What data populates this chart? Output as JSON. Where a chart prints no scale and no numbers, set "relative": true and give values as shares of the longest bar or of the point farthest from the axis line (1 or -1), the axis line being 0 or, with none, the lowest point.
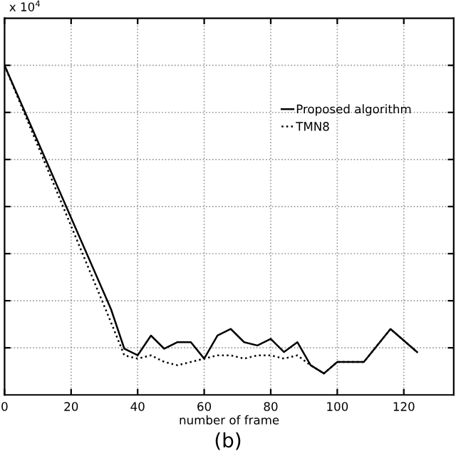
{
  "chart_data": {
    "type": "line",
    "relative": true,
    "xlabel": "number of frame",
    "annotations": [
      "x 10$^{4}$",
      "(b)"
    ],
    "x": [
      0,
      32,
      36,
      40,
      44,
      48,
      52,
      56,
      60,
      64,
      68,
      72,
      76,
      80,
      84,
      88,
      92,
      96,
      100,
      104,
      108,
      116,
      124
    ],
    "series": [
      {
        "name": "Proposed algorithm",
        "color": "#000000",
        "line_style": "solid",
        "values": [
          1.0,
          0.26,
          0.14,
          0.12,
          0.18,
          0.14,
          0.16,
          0.16,
          0.11,
          0.18,
          0.2,
          0.16,
          0.15,
          0.17,
          0.13,
          0.16,
          0.09,
          0.065,
          0.1,
          0.1,
          0.1,
          0.2,
          0.13
        ]
      },
      {
        "name": "TMN8",
        "color": "#000000",
        "line_style": "dotted",
        "values": [
          1.0,
          0.22,
          0.12,
          0.11,
          0.12,
          0.1,
          0.09,
          0.1,
          0.11,
          0.12,
          0.12,
          0.11,
          0.12,
          0.12,
          0.11,
          0.12,
          0.09,
          0.065,
          0.1,
          0.1,
          0.1,
          0.2,
          0.13
        ]
      }
    ],
    "xlim": [
      0,
      135
    ],
    "xticks": [
      0,
      20,
      40,
      60,
      80,
      100,
      120
    ],
    "grid": true,
    "legend": "top right",
    "marker": "none"
  }
}
